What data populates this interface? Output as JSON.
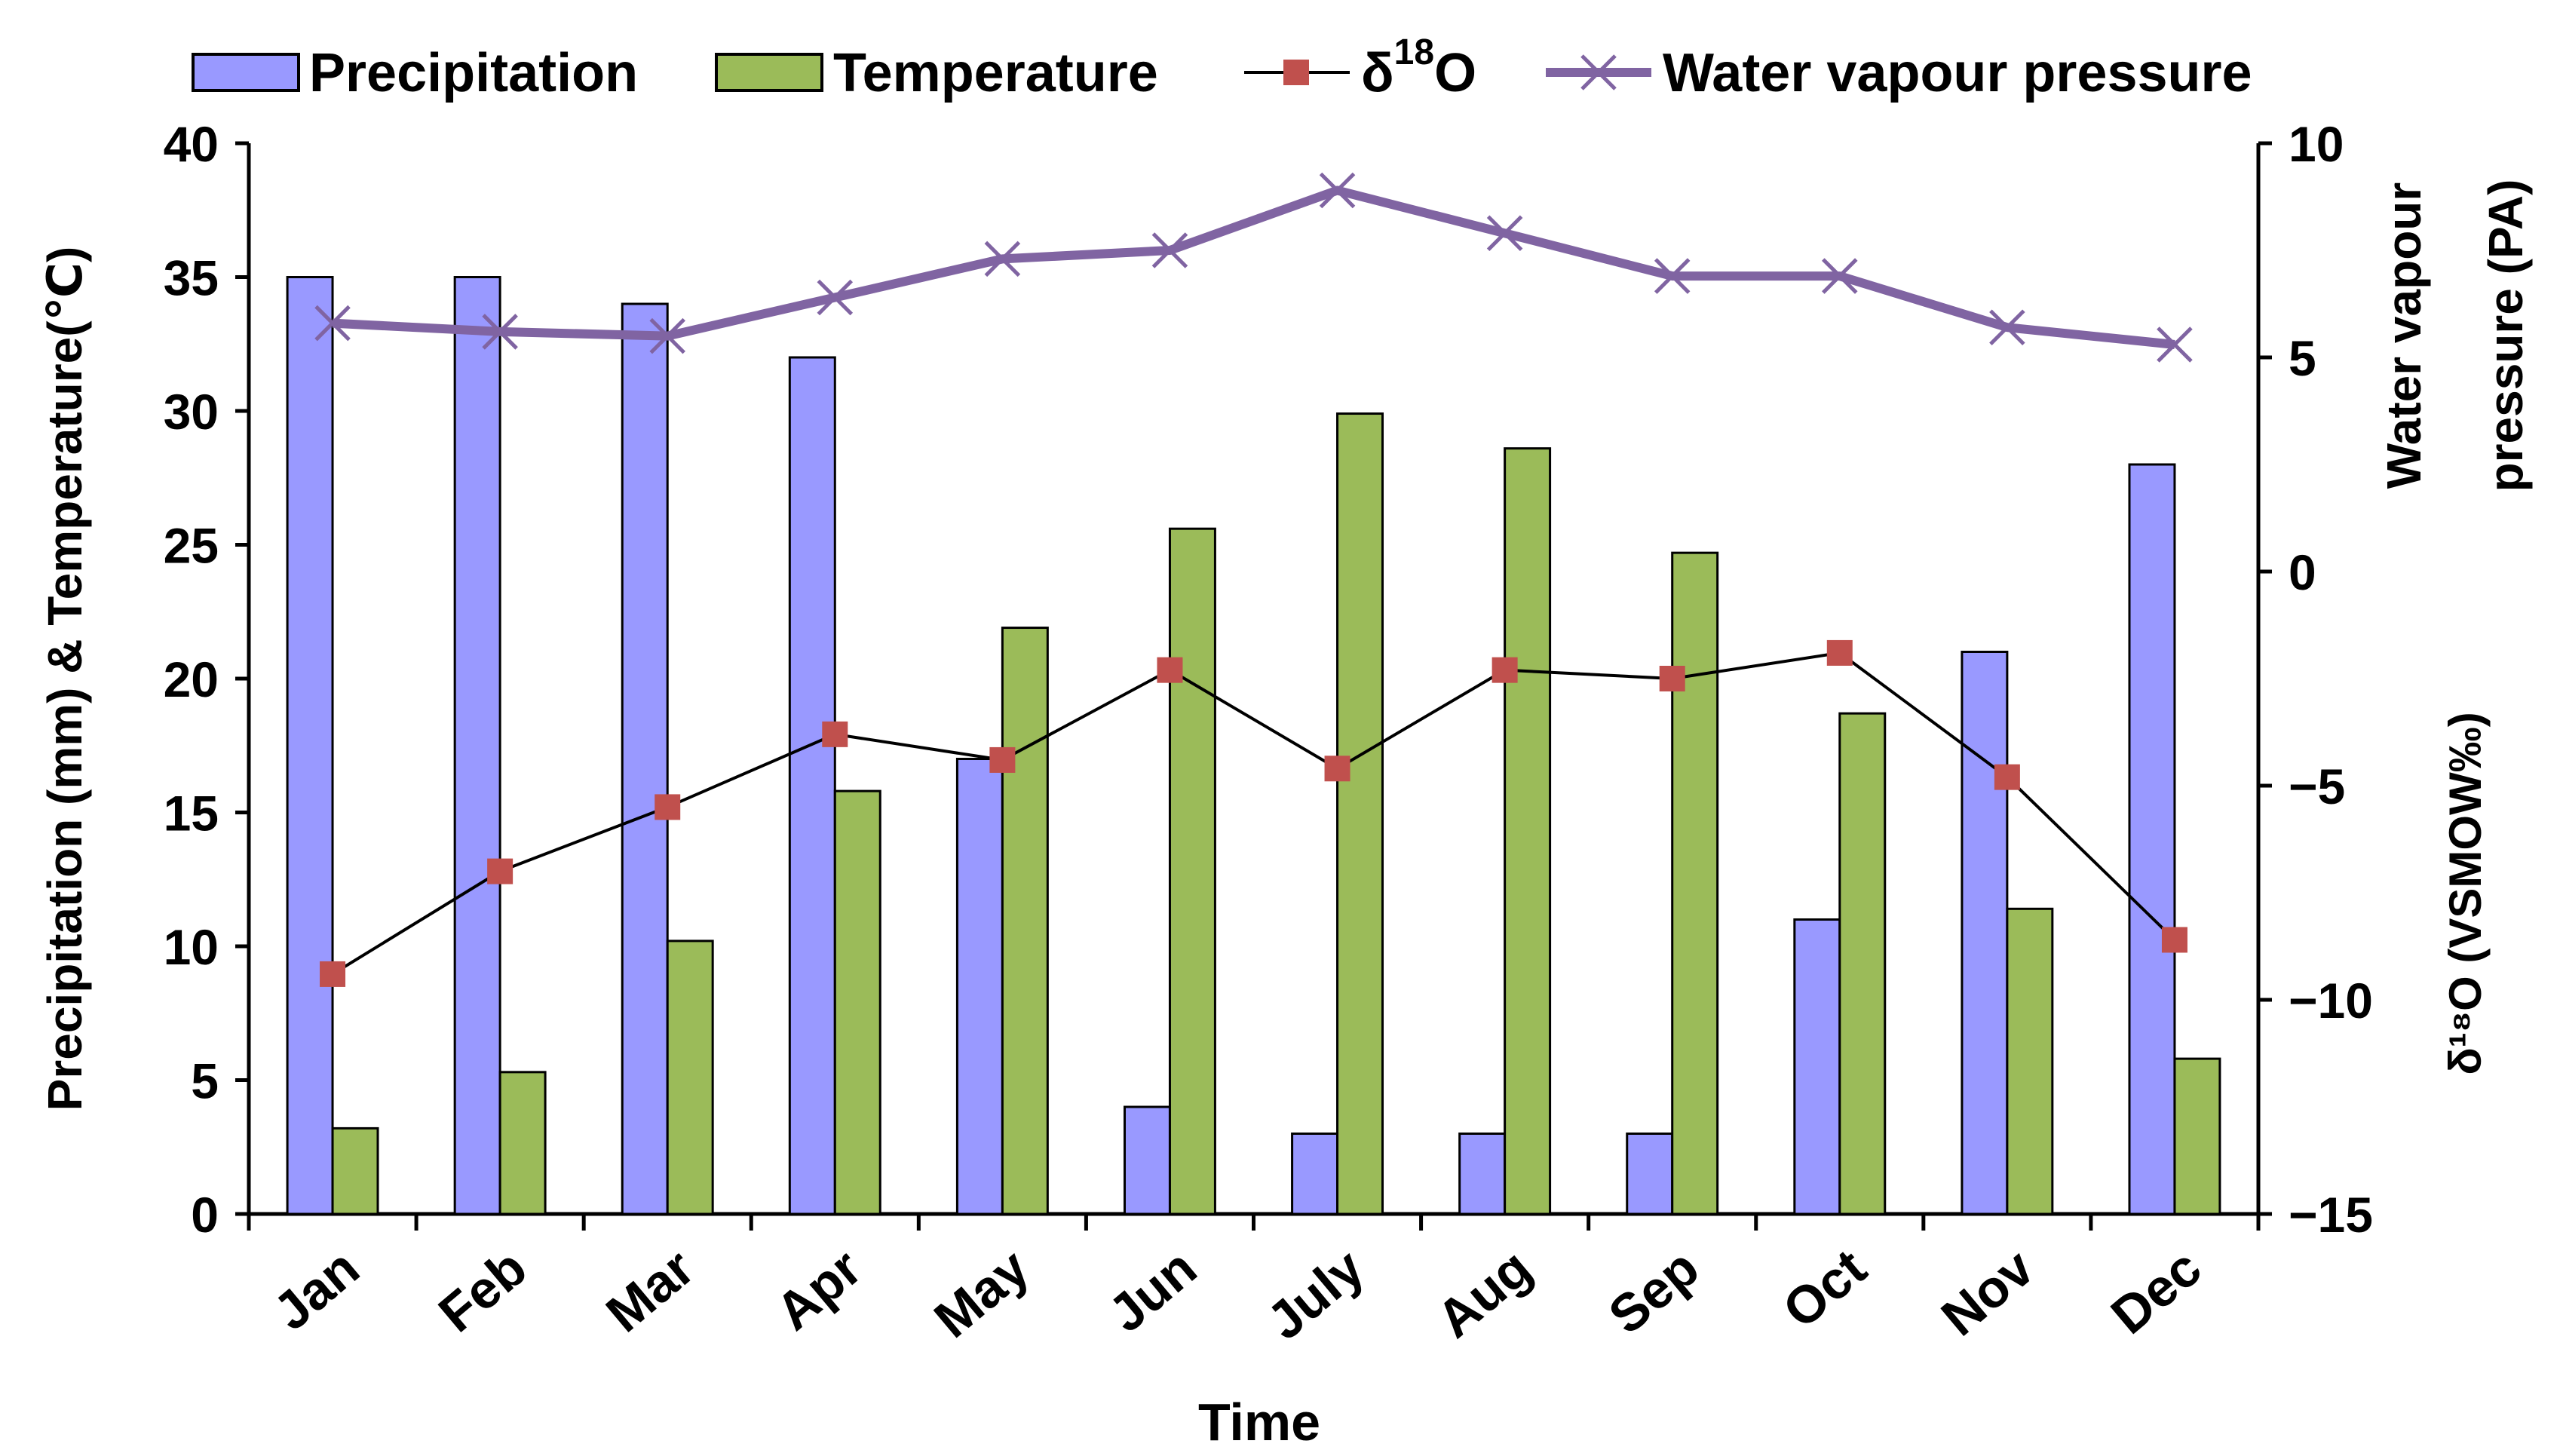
{
  "chart_data": {
    "type": "bar",
    "categories": [
      "Jan",
      "Feb",
      "Mar",
      "Apr",
      "May",
      "Jun",
      "July",
      "Aug",
      "Sep",
      "Oct",
      "Nov",
      "Dec"
    ],
    "series": [
      {
        "name": "Precipitation",
        "kind": "bar",
        "axis": "left",
        "values": [
          35,
          35,
          34,
          32,
          17,
          4,
          3,
          3,
          3,
          11,
          21,
          28
        ],
        "color": "#9999ff"
      },
      {
        "name": "Temperature",
        "kind": "bar",
        "axis": "left",
        "values": [
          3.2,
          5.3,
          10.2,
          15.8,
          21.9,
          25.6,
          29.9,
          28.6,
          24.7,
          18.7,
          11.4,
          5.8
        ],
        "color": "#9bbb59"
      },
      {
        "name": "δ18O",
        "kind": "line",
        "axis": "right",
        "values": [
          -9.4,
          -7.0,
          -5.5,
          -3.8,
          -4.4,
          -2.3,
          -4.6,
          -2.3,
          -2.5,
          -1.9,
          -4.8,
          -8.6
        ],
        "color": "#c0504d"
      },
      {
        "name": "Water vapour pressure",
        "kind": "line",
        "axis": "right",
        "values": [
          5.8,
          5.6,
          5.5,
          6.4,
          7.3,
          7.5,
          8.9,
          7.9,
          6.9,
          6.9,
          5.7,
          5.3
        ],
        "color": "#8064a2"
      }
    ],
    "legend": {
      "precipitation": "Precipitation",
      "temperature": "Temperature",
      "d18o_prefix": "δ",
      "d18o_sup": "18",
      "d18o_suffix": "O",
      "vapour": "Water vapour pressure",
      "placement": "top"
    },
    "xlabel": "Time",
    "ylabel_left": "Precipitation (mm)  & Temperature(℃)",
    "ylabel_right_top_line1": "Water vapour",
    "ylabel_right_top_line2": "pressure (PA)",
    "ylabel_right_bottom": "δ¹⁸O (VSMOW‰)",
    "ylim_left": [
      0,
      40
    ],
    "yticks_left": [
      "0",
      "5",
      "10",
      "15",
      "20",
      "25",
      "30",
      "35",
      "40"
    ],
    "ylim_right": [
      -15,
      10
    ],
    "yticks_right": [
      "-15",
      "-10",
      "-5",
      "0",
      "5",
      "10"
    ]
  }
}
